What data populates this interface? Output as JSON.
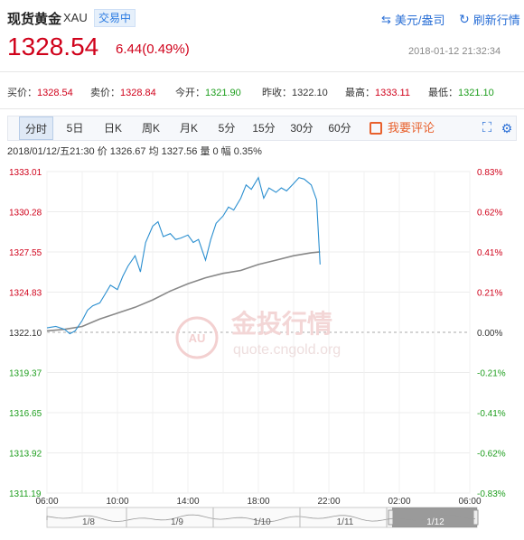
{
  "header": {
    "title": "现货黄金",
    "symbol": "XAU",
    "status_badge": "交易中",
    "currency_label": "美元/盎司",
    "refresh_label": "刷新行情"
  },
  "quote": {
    "price": "1328.54",
    "change": "6.44(0.49%)",
    "timestamp": "2018-01-12 21:32:34",
    "fields": [
      {
        "label": "买价：",
        "value": "1328.54",
        "color": "#d0021b"
      },
      {
        "label": "卖价：",
        "value": "1328.84",
        "color": "#d0021b"
      },
      {
        "label": "今开：",
        "value": "1321.90",
        "color": "#1e9e1e"
      },
      {
        "label": "昨收：",
        "value": "1322.10",
        "color": "#333333"
      },
      {
        "label": "最高：",
        "value": "1333.11",
        "color": "#d0021b"
      },
      {
        "label": "最低：",
        "value": "1321.10",
        "color": "#1e9e1e"
      }
    ]
  },
  "tabs": [
    "分时",
    "5日",
    "日K",
    "周K",
    "月K",
    "5分",
    "15分",
    "30分",
    "60分"
  ],
  "active_tab": "分时",
  "comment_label": "我要评论",
  "infoline": "2018/01/12/五21:30  价 1326.67  均 1327.56  量 0  幅 0.35%",
  "watermark": {
    "cn": "金投行情",
    "url": "quote.cngold.org",
    "logo": "AU"
  },
  "colors": {
    "up": "#d0021b",
    "down": "#1e9e1e",
    "price_line": "#2b8fd0",
    "avg_line": "#888888",
    "brand": "#2a6fd6"
  },
  "chart_data": {
    "type": "line",
    "x_ticks": [
      "06:00",
      "10:00",
      "14:00",
      "18:00",
      "22:00",
      "02:00",
      "06:00"
    ],
    "y_left_ticks": [
      "1333.01",
      "1330.28",
      "1327.55",
      "1324.83",
      "1322.10",
      "1319.37",
      "1316.65",
      "1313.92",
      "1311.19"
    ],
    "y_right_ticks": [
      "0.83%",
      "0.62%",
      "0.41%",
      "0.21%",
      "0.00%",
      "-0.21%",
      "-0.41%",
      "-0.62%",
      "-0.83%"
    ],
    "ylim": [
      1311.19,
      1333.01
    ],
    "xlim_hours": [
      6,
      30
    ],
    "baseline": 1322.1,
    "series": [
      {
        "values_x": [
          6.0,
          6.5,
          7.0,
          7.3,
          7.6,
          8.0,
          8.3,
          8.6,
          9.0,
          9.3,
          9.6,
          10.0,
          10.3,
          10.6,
          11.0,
          11.3,
          11.6,
          12.0,
          12.3,
          12.6,
          13.0,
          13.3,
          13.6,
          14.0,
          14.3,
          14.6,
          15.0,
          15.3,
          15.6,
          16.0,
          16.3,
          16.6,
          17.0,
          17.3,
          17.6,
          18.0,
          18.3,
          18.6,
          19.0,
          19.3,
          19.6,
          20.0,
          20.3,
          20.6,
          21.0,
          21.3,
          21.5
        ],
        "values_y": [
          1322.4,
          1322.5,
          1322.3,
          1322.0,
          1322.2,
          1322.9,
          1323.6,
          1323.9,
          1324.1,
          1324.7,
          1325.3,
          1325.0,
          1325.9,
          1326.6,
          1327.3,
          1326.2,
          1328.2,
          1329.3,
          1329.6,
          1328.6,
          1328.8,
          1328.4,
          1328.5,
          1328.7,
          1328.2,
          1328.4,
          1327.0,
          1328.4,
          1329.5,
          1330.0,
          1330.6,
          1330.4,
          1331.2,
          1332.1,
          1331.8,
          1332.6,
          1331.2,
          1331.9,
          1331.6,
          1331.9,
          1331.7,
          1332.2,
          1332.6,
          1332.5,
          1332.1,
          1331.1,
          1326.7
        ]
      },
      {
        "values_x": [
          6.0,
          7.0,
          8.0,
          9.0,
          10.0,
          11.0,
          12.0,
          13.0,
          14.0,
          15.0,
          16.0,
          17.0,
          18.0,
          19.0,
          20.0,
          21.0,
          21.5
        ],
        "values_y": [
          1322.2,
          1322.3,
          1322.5,
          1323.0,
          1323.4,
          1323.8,
          1324.3,
          1324.9,
          1325.4,
          1325.8,
          1326.1,
          1326.3,
          1326.7,
          1327.0,
          1327.3,
          1327.5,
          1327.56
        ]
      }
    ]
  },
  "navigator": {
    "labels": [
      "1/8",
      "1/9",
      "1/10",
      "1/11",
      "1/12"
    ]
  }
}
